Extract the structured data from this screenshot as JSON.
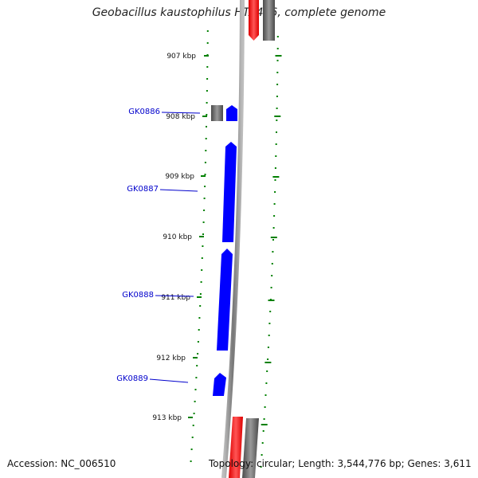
{
  "title": "Geobacillus kaustophilus HTA426, complete genome",
  "footer": {
    "accession": "Accession: NC_006510",
    "topology": "Topology: circular; Length: 3,544,776 bp; Genes: 3,611"
  },
  "scale_labels": [
    "907 kbp",
    "908 kbp",
    "909 kbp",
    "910 kbp",
    "911 kbp",
    "912 kbp",
    "913 kbp"
  ],
  "genes": [
    {
      "id": "GK0886",
      "start_kbp": 908.0,
      "end_kbp": 908.2,
      "strand": "+",
      "color": "#0000ff"
    },
    {
      "id": "GK0887",
      "start_kbp": 908.6,
      "end_kbp": 910.0,
      "strand": "+",
      "color": "#0000ff"
    },
    {
      "id": "GK0888",
      "start_kbp": 910.2,
      "end_kbp": 911.9,
      "strand": "+",
      "color": "#0000ff"
    },
    {
      "id": "GK0889",
      "start_kbp": 912.3,
      "end_kbp": 912.6,
      "strand": "+",
      "color": "#0000ff"
    }
  ],
  "colors": {
    "backbone": "#888888",
    "ruler": "#008000",
    "neighbor_gene": "#ff0000",
    "neighbor_gene_alt": "#6e6e6e",
    "focus_gene": "#0000ff",
    "label": "#0000cc"
  }
}
